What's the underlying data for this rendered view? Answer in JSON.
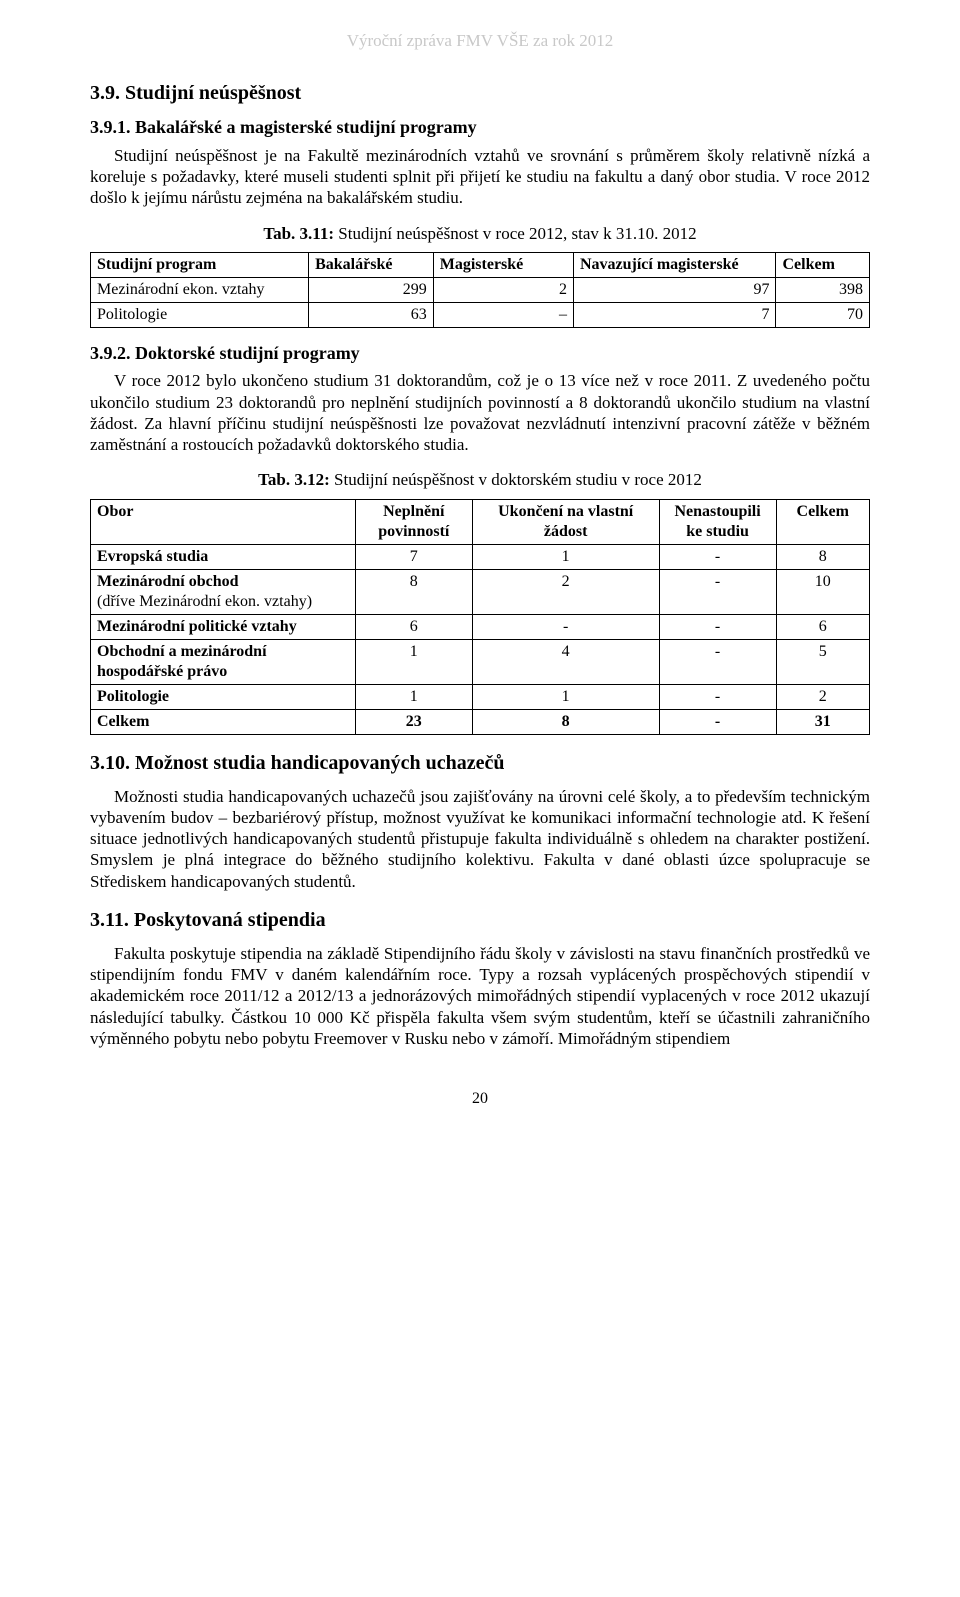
{
  "header": "Výroční zpráva FMV VŠE za rok 2012",
  "sec_3_9": {
    "title": "3.9. Studijní neúspěšnost",
    "sub_3_9_1": {
      "title": "3.9.1. Bakalářské a magisterské studijní programy",
      "para": "Studijní neúspěšnost je na Fakultě mezinárodních vztahů ve srovnání s průměrem školy relativně nízká a koreluje s požadavky, které museli studenti splnit při přijetí ke studiu na fakultu a daný obor studia. V roce 2012 došlo k jejímu nárůstu zejména na bakalářském studiu."
    },
    "tab_3_11": {
      "caption_bold": "Tab. 3.11:",
      "caption_rest": " Studijní neúspěšnost v roce 2012, stav k 31.10. 2012",
      "cols": [
        "Studijní program",
        "Bakalářské",
        "Magisterské",
        "Navazující magisterské",
        "Celkem"
      ],
      "rows": [
        {
          "label": "Mezinárodní ekon. vztahy",
          "bak": "299",
          "mag": "2",
          "nmag": "97",
          "tot": "398"
        },
        {
          "label": "Politologie",
          "bak": "63",
          "mag": "–",
          "nmag": "7",
          "tot": "70"
        }
      ]
    },
    "sub_3_9_2": {
      "title": "3.9.2. Doktorské studijní programy",
      "para": "V roce 2012 bylo ukončeno studium 31 doktorandům, což je o 13 více než v roce 2011. Z uvedeného počtu ukončilo studium 23 doktorandů pro neplnění studijních povinností a 8 doktorandů ukončilo studium na vlastní žádost. Za hlavní příčinu studijní neúspěšnosti lze považovat nezvládnutí intenzivní pracovní zátěže v běžném zaměstnání a rostoucích požadavků doktorského studia."
    },
    "tab_3_12": {
      "caption_bold": "Tab. 3.12:",
      "caption_rest": " Studijní neúspěšnost v doktorském studiu v roce 2012",
      "cols": [
        "Obor",
        "Neplnění povinností",
        "Ukončení na vlastní žádost",
        "Nenastoupili ke studiu",
        "Celkem"
      ],
      "rows": [
        {
          "label": "Evropská studia",
          "sub": "",
          "c1": "7",
          "c2": "1",
          "c3": "-",
          "c4": "8",
          "bold": true
        },
        {
          "label": "Mezinárodní obchod",
          "sub": "(dříve Mezinárodní ekon. vztahy)",
          "c1": "8",
          "c2": "2",
          "c3": "-",
          "c4": "10",
          "bold": true
        },
        {
          "label": "Mezinárodní politické vztahy",
          "sub": "",
          "c1": "6",
          "c2": "-",
          "c3": "-",
          "c4": "6",
          "bold": true
        },
        {
          "label": "Obchodní a mezinárodní hospodářské právo",
          "sub": "",
          "c1": "1",
          "c2": "4",
          "c3": "-",
          "c4": "5",
          "bold": true
        },
        {
          "label": "Politologie",
          "sub": "",
          "c1": "1",
          "c2": "1",
          "c3": "-",
          "c4": "2",
          "bold": true
        },
        {
          "label": "Celkem",
          "sub": "",
          "c1": "23",
          "c2": "8",
          "c3": "-",
          "c4": "31",
          "bold": true
        }
      ]
    }
  },
  "sec_3_10": {
    "title": "3.10. Možnost studia handicapovaných uchazečů",
    "para": "Možnosti studia handicapovaných uchazečů jsou zajišťovány na úrovni celé školy, a to především technickým vybavením budov – bezbariérový přístup, možnost využívat ke komunikaci informační technologie atd. K řešení situace jednotlivých handicapovaných studentů přistupuje fakulta individuálně s ohledem na charakter postižení. Smyslem je plná integrace do běžného studijního kolektivu. Fakulta v dané oblasti úzce spolupracuje se Střediskem handicapovaných studentů."
  },
  "sec_3_11": {
    "title": "3.11. Poskytovaná stipendia",
    "para": "Fakulta poskytuje stipendia na základě Stipendijního řádu školy v závislosti na stavu finančních prostředků ve stipendijním fondu FMV v daném kalendářním roce. Typy a rozsah vyplácených prospěchových stipendií v akademickém roce 2011/12 a 2012/13 a jednorázových mimořádných stipendií vyplacených v roce 2012 ukazují následující tabulky. Částkou 10 000 Kč přispěla fakulta všem svým studentům, kteří se účastnili zahraničního výměnného pobytu nebo pobytu Freemover v Rusku nebo v zámoří. Mimořádným stipendiem"
  },
  "page_number": "20"
}
